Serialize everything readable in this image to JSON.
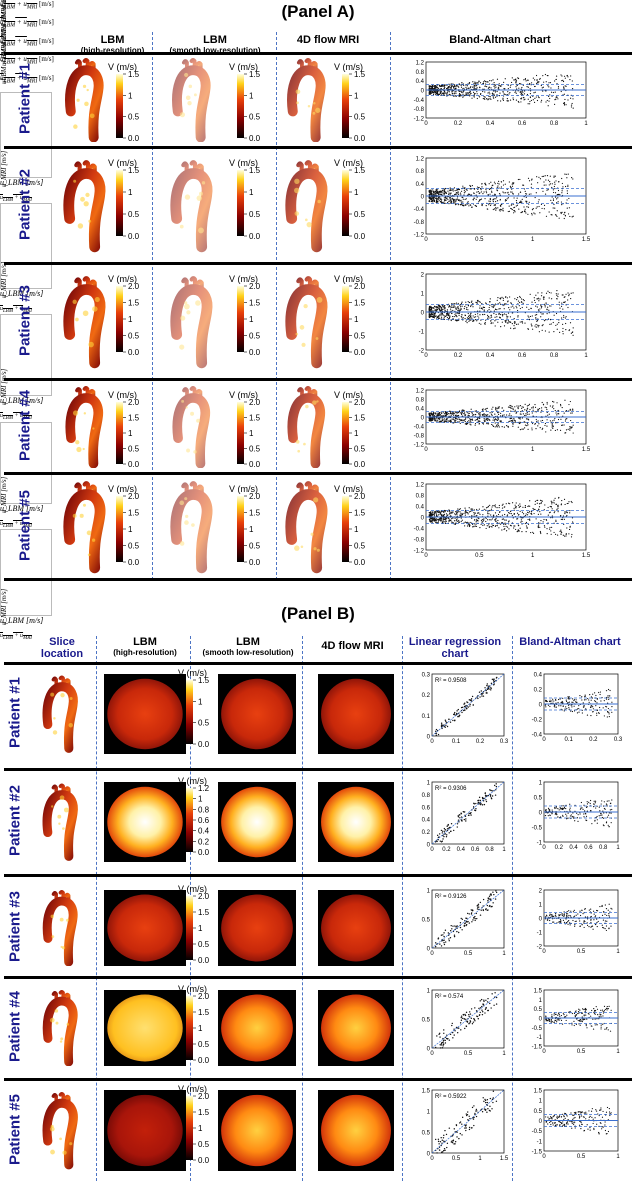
{
  "panelA": {
    "title": "(Panel A)",
    "columns": [
      {
        "label": "LBM",
        "sub": "(high-resolution)"
      },
      {
        "label": "LBM",
        "sub": "(smooth low-resolution)"
      },
      {
        "label": "4D flow MRI",
        "sub": ""
      },
      {
        "label": "Bland-Altman chart",
        "sub": ""
      }
    ],
    "rows": [
      {
        "patient": "Patient #1",
        "cb_title": "V (m/s)",
        "cb_ticks": [
          "1.5",
          "1",
          "0.5",
          "0.0"
        ],
        "ba": {
          "xmax": 1,
          "xticks": [
            "0",
            "0.2",
            "0.4",
            "0.6",
            "0.8",
            "1"
          ],
          "yticks": [
            "1.2",
            "0.8",
            "0.4",
            "0",
            "-0.4",
            "-0.8",
            "-1.2"
          ],
          "ymin": -1.2,
          "ymax": 1.2
        }
      },
      {
        "patient": "Patient #2",
        "cb_title": "V (m/s)",
        "cb_ticks": [
          "1.5",
          "1",
          "0.5",
          "0.0"
        ],
        "ba": {
          "xmax": 1.5,
          "xticks": [
            "0",
            "0.5",
            "1",
            "1.5"
          ],
          "yticks": [
            "1.2",
            "0.8",
            "0.4",
            "0",
            "-0.4",
            "-0.8",
            "-1.2"
          ],
          "ymin": -1.2,
          "ymax": 1.2
        }
      },
      {
        "patient": "Patient #3",
        "cb_title": "V (m/s)",
        "cb_ticks": [
          "2.0",
          "1.5",
          "1",
          "0.5",
          "0.0"
        ],
        "ba": {
          "xmax": 1,
          "xticks": [
            "0",
            "0.2",
            "0.4",
            "0.6",
            "0.8",
            "1"
          ],
          "yticks": [
            "2",
            "1",
            "0",
            "-1",
            "-2"
          ],
          "ymin": -2,
          "ymax": 2
        }
      },
      {
        "patient": "Patient #4",
        "cb_title": "V (m/s)",
        "cb_ticks": [
          "2.0",
          "1.5",
          "1",
          "0.5",
          "0.0"
        ],
        "ba": {
          "xmax": 1.5,
          "xticks": [
            "0",
            "0.5",
            "1",
            "1.5"
          ],
          "yticks": [
            "1.2",
            "0.8",
            "0.4",
            "0",
            "-0.4",
            "-0.8",
            "-1.2"
          ],
          "ymin": -1.2,
          "ymax": 1.2
        }
      },
      {
        "patient": "Patient #5",
        "cb_title": "V (m/s)",
        "cb_ticks": [
          "2.0",
          "1.5",
          "1",
          "0.5",
          "0.0"
        ],
        "ba": {
          "xmax": 1.5,
          "xticks": [
            "0",
            "0.5",
            "1",
            "1.5"
          ],
          "yticks": [
            "1.2",
            "0.8",
            "0.4",
            "0",
            "-0.4",
            "-0.8",
            "-1.2"
          ],
          "ymin": -1.2,
          "ymax": 1.2
        }
      }
    ],
    "ba_xunit": "[m/s]"
  },
  "panelB": {
    "title": "(Panel B)",
    "columns": [
      {
        "label": "Slice location",
        "sub": ""
      },
      {
        "label": "LBM",
        "sub": "(high-resolution)"
      },
      {
        "label": "LBM",
        "sub": "(smooth low-resolution)"
      },
      {
        "label": "4D flow MRI",
        "sub": ""
      },
      {
        "label": "Linear regression chart",
        "sub": ""
      },
      {
        "label": "Bland-Altman chart",
        "sub": ""
      }
    ],
    "rows": [
      {
        "patient": "Patient #1",
        "cb_title": "V (m/s)",
        "cb_ticks": [
          "1.5",
          "1",
          "0.5",
          "0.0"
        ],
        "r2": "R² = 0.9508",
        "lr": {
          "xmax": 0.3,
          "xticks": [
            "0",
            "0.1",
            "0.2",
            "0.3"
          ],
          "yticks": [
            "0.3",
            "0.2",
            "0.1",
            "0"
          ]
        },
        "ba": {
          "xmax": 0.3,
          "xticks": [
            "0",
            "0.1",
            "0.2",
            "0.3"
          ],
          "yticks": [
            "0.4",
            "0.2",
            "0",
            "-0.2",
            "-0.4"
          ]
        }
      },
      {
        "patient": "Patient #2",
        "cb_title": "V (m/s)",
        "cb_ticks": [
          "1.2",
          "1",
          "0.8",
          "0.6",
          "0.4",
          "0.2",
          "0.0"
        ],
        "r2": "R² = 0.9306",
        "lr": {
          "xmax": 1,
          "xticks": [
            "0",
            "0.2",
            "0.4",
            "0.6",
            "0.8",
            "1"
          ],
          "yticks": [
            "1",
            "0.8",
            "0.6",
            "0.4",
            "0.2",
            "0"
          ]
        },
        "ba": {
          "xmax": 1,
          "xticks": [
            "0",
            "0.2",
            "0.4",
            "0.6",
            "0.8",
            "1"
          ],
          "yticks": [
            "1",
            "0.5",
            "0",
            "-0.5",
            "-1"
          ]
        }
      },
      {
        "patient": "Patient #3",
        "cb_title": "V (m/s)",
        "cb_ticks": [
          "2.0",
          "1.5",
          "1",
          "0.5",
          "0.0"
        ],
        "r2": "R² = 0.9126",
        "lr": {
          "xmax": 1,
          "xticks": [
            "0",
            "0.5",
            "1"
          ],
          "yticks": [
            "1",
            "0.5",
            "0"
          ]
        },
        "ba": {
          "xmax": 1,
          "xticks": [
            "0",
            "0.5",
            "1"
          ],
          "yticks": [
            "2",
            "1",
            "0",
            "-1",
            "-2"
          ]
        }
      },
      {
        "patient": "Patient #4",
        "cb_title": "V (m/s)",
        "cb_ticks": [
          "2.0",
          "1.5",
          "1",
          "0.5",
          "0.0"
        ],
        "r2": "R² = 0.574",
        "lr": {
          "xmax": 1,
          "xticks": [
            "0",
            "0.5",
            "1"
          ],
          "yticks": [
            "1",
            "0.5",
            "0"
          ]
        },
        "ba": {
          "xmax": 1,
          "xticks": [
            "0",
            "0.5",
            "1"
          ],
          "yticks": [
            "1.5",
            "1",
            "0.5",
            "0",
            "-0.5",
            "-1",
            "-1.5"
          ]
        }
      },
      {
        "patient": "Patient #5",
        "cb_title": "V (m/s)",
        "cb_ticks": [
          "2.0",
          "1.5",
          "1",
          "0.5",
          "0.0"
        ],
        "r2": "R² = 0.5922",
        "lr": {
          "xmax": 1.5,
          "xticks": [
            "0",
            "0.5",
            "1",
            "1.5"
          ],
          "yticks": [
            "1.5",
            "1",
            "0.5",
            "0"
          ]
        },
        "ba": {
          "xmax": 1,
          "xticks": [
            "0",
            "0.5",
            "1"
          ],
          "yticks": [
            "1.5",
            "1",
            "0.5",
            "0",
            "-0.5",
            "-1",
            "-1.5"
          ]
        }
      }
    ],
    "lr_xlabel": "u_LBM [m/s]",
    "lr_ylabel": "u_MRI [m/s]",
    "ba_xunit": "[m/s]"
  },
  "colors": {
    "accent": "#1a1a8c",
    "divider": "#4d74c4",
    "ba_line": "#3a6fd0"
  }
}
